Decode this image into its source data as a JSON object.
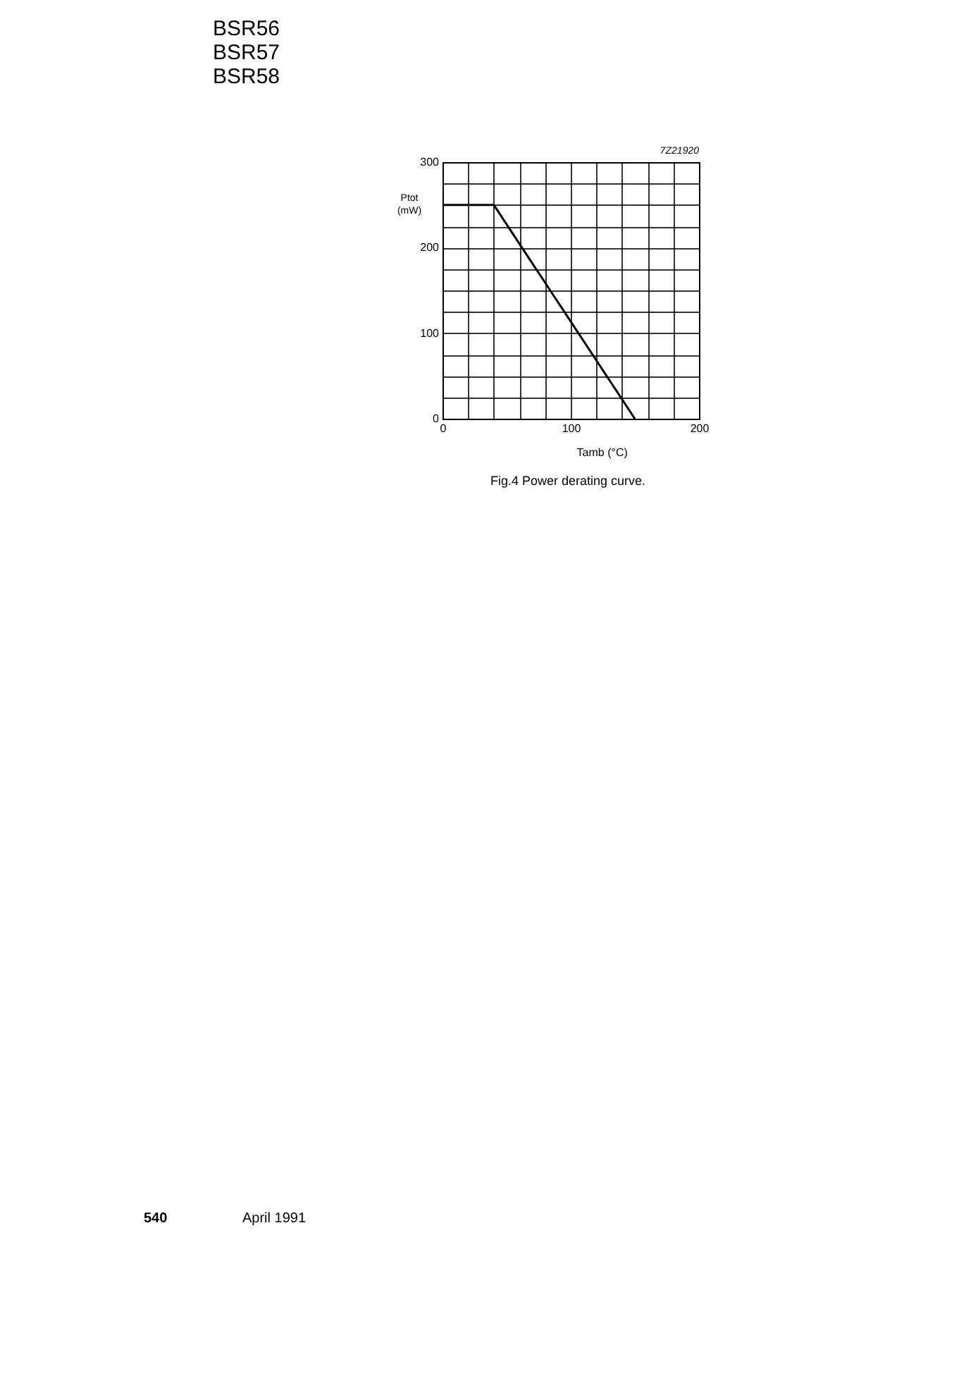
{
  "chart_data": {
    "type": "line",
    "title": "Fig.4  Power derating curve.",
    "xlabel": "Tamb (°C)",
    "ylabel": "Ptot (mW)",
    "x": [
      0,
      40,
      150
    ],
    "series": [
      {
        "color": "#000000",
        "values": [
          250,
          250,
          0
        ]
      }
    ],
    "xlim": [
      0,
      200
    ],
    "ylim": [
      0,
      300
    ],
    "xticks": [
      0,
      {
        "value": 20,
        "label": null
      },
      {
        "value": 40,
        "label": null
      },
      {
        "value": 60,
        "label": null
      },
      {
        "value": 80,
        "label": null
      },
      100,
      {
        "value": 120,
        "label": null
      },
      {
        "value": 140,
        "label": null
      },
      {
        "value": 160,
        "label": null
      },
      {
        "value": 180,
        "label": null
      },
      200
    ],
    "yticks": [
      0,
      {
        "value": 25,
        "label": null
      },
      {
        "value": 50,
        "label": null
      },
      {
        "value": 75,
        "label": null
      },
      100,
      {
        "value": 125,
        "label": null
      },
      {
        "value": 150,
        "label": null
      },
      {
        "value": 175,
        "label": null
      },
      200,
      {
        "value": 225,
        "label": null
      },
      {
        "value": 250,
        "label": null
      },
      {
        "value": 275,
        "label": null
      },
      300
    ],
    "grid": true,
    "marker": "none",
    "line_style": "solid",
    "annotations": [
      "7Z21920",
      "BSR56",
      "BSR57",
      "BSR58",
      "540",
      "April 1991"
    ]
  }
}
